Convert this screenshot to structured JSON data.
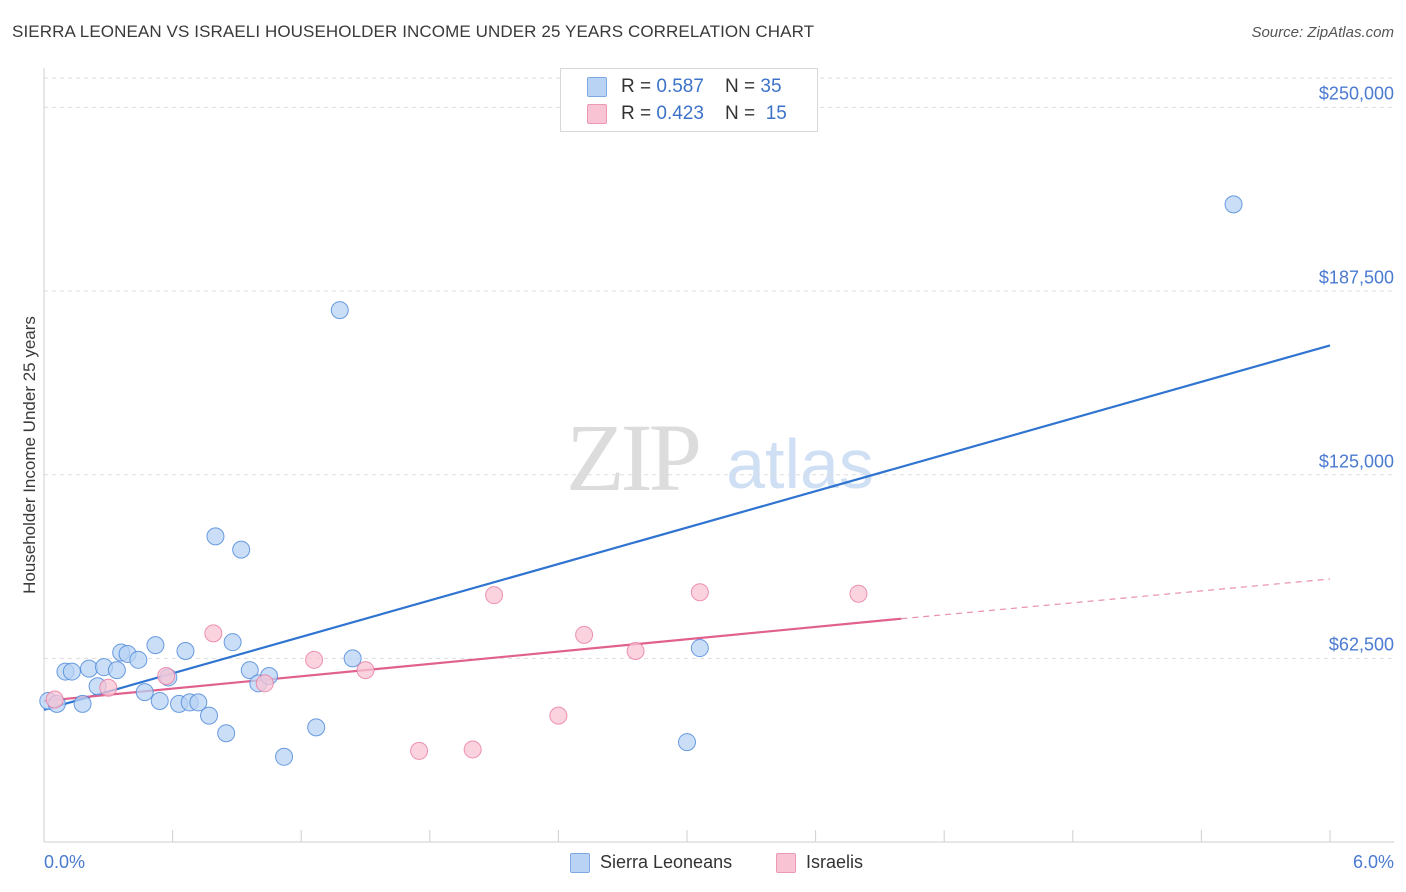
{
  "title": "SIERRA LEONEAN VS ISRAELI HOUSEHOLDER INCOME UNDER 25 YEARS CORRELATION CHART",
  "source": "Source: ZipAtlas.com",
  "watermark": {
    "zip": "ZIP",
    "atlas": "atlas"
  },
  "legend_top": {
    "rows": [
      {
        "r_label": "R = ",
        "r_value": "0.587",
        "n_label": "N = ",
        "n_value": "35",
        "color": "#a9c8f0"
      },
      {
        "r_label": "R = ",
        "r_value": "0.423",
        "n_label": "N = ",
        "n_value": "15",
        "color": "#f5b8cb"
      }
    ]
  },
  "legend_bottom": [
    {
      "label": "Sierra Leoneans",
      "color": "#a9c8f0"
    },
    {
      "label": "Israelis",
      "color": "#f5b8cb"
    }
  ],
  "chart_data": {
    "type": "scatter",
    "title": "SIERRA LEONEAN VS ISRAELI HOUSEHOLDER INCOME UNDER 25 YEARS CORRELATION CHART",
    "xlabel": "",
    "ylabel": "Householder Income Under 25 years",
    "xlim": [
      0.0,
      6.0
    ],
    "ylim": [
      0,
      260000
    ],
    "x_tick_labels": [
      "0.0%",
      "6.0%"
    ],
    "y_ticks": [
      62500,
      125000,
      187500,
      250000
    ],
    "y_tick_labels": [
      "$62,500",
      "$125,000",
      "$187,500",
      "$250,000"
    ],
    "grid": true,
    "series": [
      {
        "name": "Sierra Leoneans",
        "color": "#4a86d8",
        "fill": "#b8d3f4",
        "trend": {
          "x": [
            0.0,
            6.0
          ],
          "y": [
            45000,
            169000
          ],
          "color": "#2f74d0"
        },
        "points": [
          {
            "x": 0.02,
            "y": 48000
          },
          {
            "x": 0.06,
            "y": 47000
          },
          {
            "x": 0.1,
            "y": 58000
          },
          {
            "x": 0.13,
            "y": 58000
          },
          {
            "x": 0.18,
            "y": 47000
          },
          {
            "x": 0.21,
            "y": 59000
          },
          {
            "x": 0.25,
            "y": 53000
          },
          {
            "x": 0.28,
            "y": 59500
          },
          {
            "x": 0.34,
            "y": 58500
          },
          {
            "x": 0.36,
            "y": 64500
          },
          {
            "x": 0.39,
            "y": 64000
          },
          {
            "x": 0.44,
            "y": 62000
          },
          {
            "x": 0.47,
            "y": 51000
          },
          {
            "x": 0.52,
            "y": 67000
          },
          {
            "x": 0.54,
            "y": 48000
          },
          {
            "x": 0.58,
            "y": 56000
          },
          {
            "x": 0.63,
            "y": 47000
          },
          {
            "x": 0.66,
            "y": 65000
          },
          {
            "x": 0.68,
            "y": 47500
          },
          {
            "x": 0.72,
            "y": 47500
          },
          {
            "x": 0.77,
            "y": 43000
          },
          {
            "x": 0.8,
            "y": 104000
          },
          {
            "x": 0.85,
            "y": 37000
          },
          {
            "x": 0.88,
            "y": 68000
          },
          {
            "x": 0.92,
            "y": 99500
          },
          {
            "x": 0.96,
            "y": 58500
          },
          {
            "x": 1.0,
            "y": 54000
          },
          {
            "x": 1.05,
            "y": 56500
          },
          {
            "x": 1.12,
            "y": 29000
          },
          {
            "x": 1.27,
            "y": 39000
          },
          {
            "x": 1.38,
            "y": 181000
          },
          {
            "x": 1.44,
            "y": 62500
          },
          {
            "x": 3.0,
            "y": 34000
          },
          {
            "x": 3.06,
            "y": 66000
          },
          {
            "x": 5.55,
            "y": 217000
          }
        ]
      },
      {
        "name": "Israelis",
        "color": "#e87ba0",
        "fill": "#f8c4d4",
        "trend": {
          "x": [
            0.0,
            4.0
          ],
          "y": [
            48000,
            76000
          ],
          "color": "#e0608e",
          "dashed_extension": {
            "x": [
              4.0,
              6.0
            ],
            "y": [
              76000,
              89500
            ]
          }
        },
        "points": [
          {
            "x": 0.05,
            "y": 48500
          },
          {
            "x": 0.3,
            "y": 52500
          },
          {
            "x": 0.57,
            "y": 56500
          },
          {
            "x": 0.79,
            "y": 71000
          },
          {
            "x": 1.03,
            "y": 54000
          },
          {
            "x": 1.26,
            "y": 62000
          },
          {
            "x": 1.5,
            "y": 58500
          },
          {
            "x": 1.75,
            "y": 31000
          },
          {
            "x": 2.0,
            "y": 31500
          },
          {
            "x": 2.1,
            "y": 84000
          },
          {
            "x": 2.4,
            "y": 43000
          },
          {
            "x": 2.52,
            "y": 70500
          },
          {
            "x": 2.76,
            "y": 65000
          },
          {
            "x": 3.06,
            "y": 85000
          },
          {
            "x": 3.8,
            "y": 84500
          }
        ]
      }
    ]
  }
}
